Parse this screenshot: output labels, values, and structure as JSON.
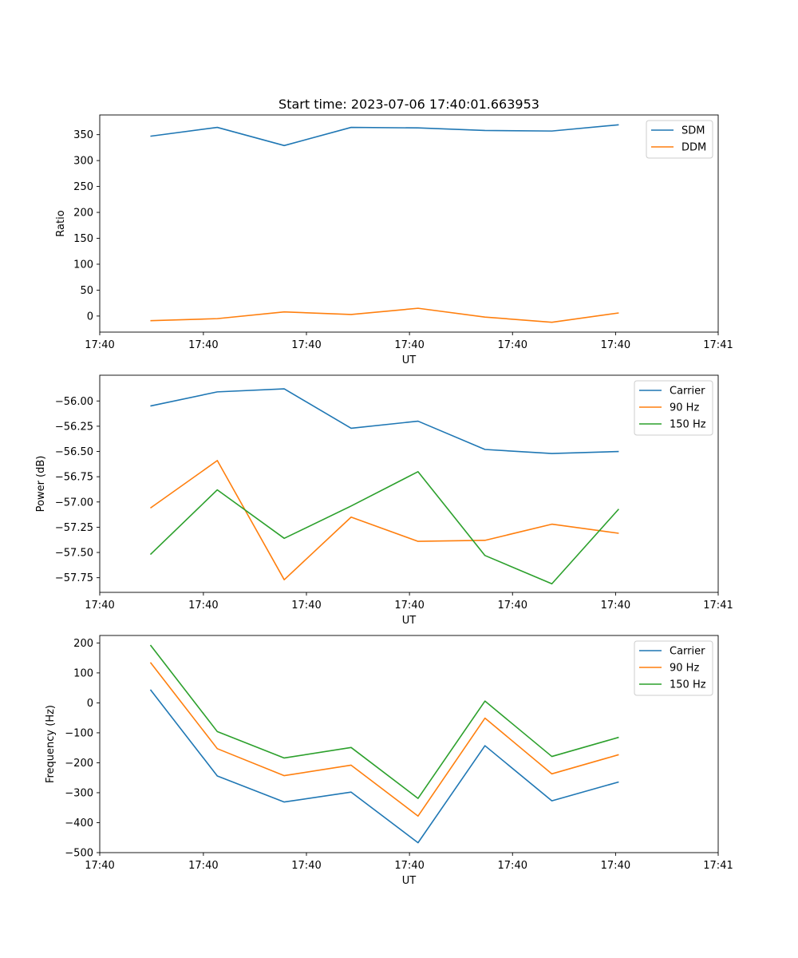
{
  "figure_title": "Start time: 2023-07-06 17:40:01.663953",
  "chart_data": [
    {
      "type": "line",
      "ylabel": "Ratio",
      "xlabel": "UT",
      "title": "Start time: 2023-07-06 17:40:01.663953",
      "x": [
        0,
        1,
        2,
        3,
        4,
        5,
        6,
        7
      ],
      "xlim": [
        -0.757,
        8.486
      ],
      "xticks": [
        -0.757,
        0.792,
        2.332,
        3.872,
        5.412,
        6.952,
        8.486
      ],
      "xtick_labels": [
        "17:40",
        "17:40",
        "17:40",
        "17:40",
        "17:40",
        "17:40",
        "17:41"
      ],
      "ylim": [
        -31,
        388
      ],
      "yticks": [
        0,
        50,
        100,
        150,
        200,
        250,
        300,
        350
      ],
      "ytick_labels": [
        "0",
        "50",
        "100",
        "150",
        "200",
        "250",
        "300",
        "350"
      ],
      "legend_position": "top-right",
      "series": [
        {
          "name": "SDM",
          "color": "#1f77b4",
          "values": [
            347,
            364,
            329,
            364,
            363,
            358,
            357,
            369
          ]
        },
        {
          "name": "DDM",
          "color": "#ff7f0e",
          "values": [
            -9,
            -5,
            8,
            3,
            15,
            -2,
            -12,
            6
          ]
        }
      ]
    },
    {
      "type": "line",
      "ylabel": "Power (dB)",
      "xlabel": "UT",
      "x": [
        0,
        1,
        2,
        3,
        4,
        5,
        6,
        7
      ],
      "xlim": [
        -0.757,
        8.486
      ],
      "xticks": [
        -0.757,
        0.792,
        2.332,
        3.872,
        5.412,
        6.952,
        8.486
      ],
      "xtick_labels": [
        "17:40",
        "17:40",
        "17:40",
        "17:40",
        "17:40",
        "17:40",
        "17:41"
      ],
      "ylim": [
        -57.895,
        -55.745
      ],
      "yticks": [
        -57.75,
        -57.5,
        -57.25,
        -57.0,
        -56.75,
        -56.5,
        -56.25,
        -56.0
      ],
      "ytick_labels": [
        "−57.75",
        "−57.50",
        "−57.25",
        "−57.00",
        "−56.75",
        "−56.50",
        "−56.25",
        "−56.00"
      ],
      "legend_position": "top-right",
      "series": [
        {
          "name": "Carrier",
          "color": "#1f77b4",
          "values": [
            -56.05,
            -55.91,
            -55.88,
            -56.27,
            -56.2,
            -56.48,
            -56.52,
            -56.5
          ]
        },
        {
          "name": "90 Hz",
          "color": "#ff7f0e",
          "values": [
            -57.06,
            -56.59,
            -57.77,
            -57.15,
            -57.39,
            -57.38,
            -57.22,
            -57.31
          ]
        },
        {
          "name": "150 Hz",
          "color": "#2ca02c",
          "values": [
            -57.52,
            -56.88,
            -57.36,
            -57.04,
            -56.7,
            -57.53,
            -57.81,
            -57.07
          ]
        }
      ]
    },
    {
      "type": "line",
      "ylabel": "Frequency (Hz)",
      "xlabel": "UT",
      "x": [
        0,
        1,
        2,
        3,
        4,
        5,
        6,
        7
      ],
      "xlim": [
        -0.757,
        8.486
      ],
      "xticks": [
        -0.757,
        0.792,
        2.332,
        3.872,
        5.412,
        6.952,
        8.486
      ],
      "xtick_labels": [
        "17:40",
        "17:40",
        "17:40",
        "17:40",
        "17:40",
        "17:40",
        "17:41"
      ],
      "ylim": [
        -500,
        225
      ],
      "yticks": [
        -500,
        -400,
        -300,
        -200,
        -100,
        0,
        100,
        200
      ],
      "ytick_labels": [
        "−500",
        "−400",
        "−300",
        "−200",
        "−100",
        "0",
        "100",
        "200"
      ],
      "legend_position": "top-right",
      "series": [
        {
          "name": "Carrier",
          "color": "#1f77b4",
          "values": [
            44,
            -244,
            -331,
            -298,
            -467,
            -143,
            -327,
            -264
          ]
        },
        {
          "name": "90 Hz",
          "color": "#ff7f0e",
          "values": [
            135,
            -153,
            -243,
            -208,
            -378,
            -51,
            -237,
            -173
          ]
        },
        {
          "name": "150 Hz",
          "color": "#2ca02c",
          "values": [
            193,
            -96,
            -184,
            -149,
            -319,
            6,
            -179,
            -115
          ]
        }
      ]
    }
  ]
}
